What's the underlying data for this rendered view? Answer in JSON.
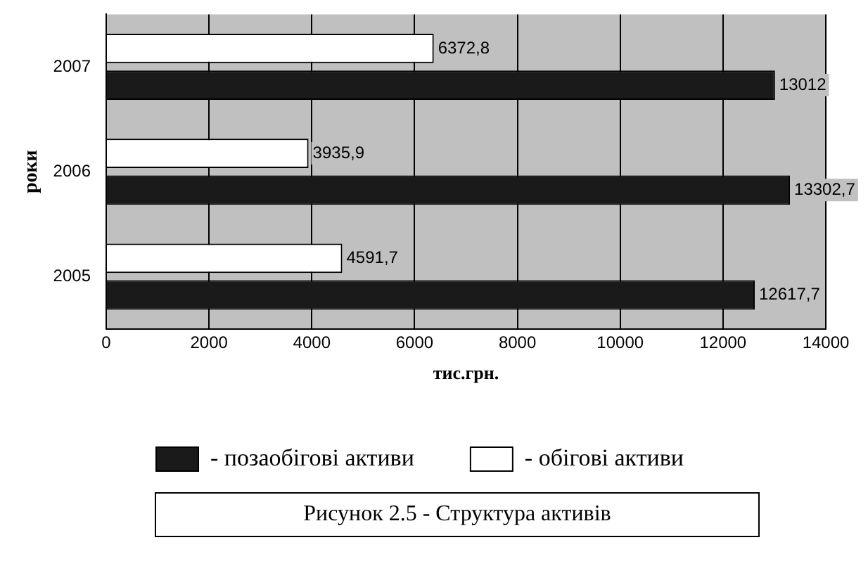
{
  "chart_data": {
    "type": "bar",
    "orientation": "horizontal",
    "title": "Рисунок 2.5 - Структура активів",
    "xlabel": "тис.грн.",
    "ylabel": "роки",
    "categories": [
      "2007",
      "2006",
      "2005"
    ],
    "series": [
      {
        "name": "- обігові активи",
        "color": "#ffffff",
        "values": [
          6372.8,
          3935.9,
          4591.7
        ],
        "value_labels": [
          "6372,8",
          "3935,9",
          "4591,7"
        ]
      },
      {
        "name": "- позаобігові активи",
        "color": "#1a1a1a",
        "values": [
          13012,
          13302.7,
          12617.7
        ],
        "value_labels": [
          "13012",
          "13302,7",
          "12617,7"
        ]
      }
    ],
    "xlim": [
      0,
      14000
    ],
    "xticks": [
      0,
      2000,
      4000,
      6000,
      8000,
      10000,
      12000,
      14000
    ],
    "grid": "x",
    "legend": "bottom"
  }
}
